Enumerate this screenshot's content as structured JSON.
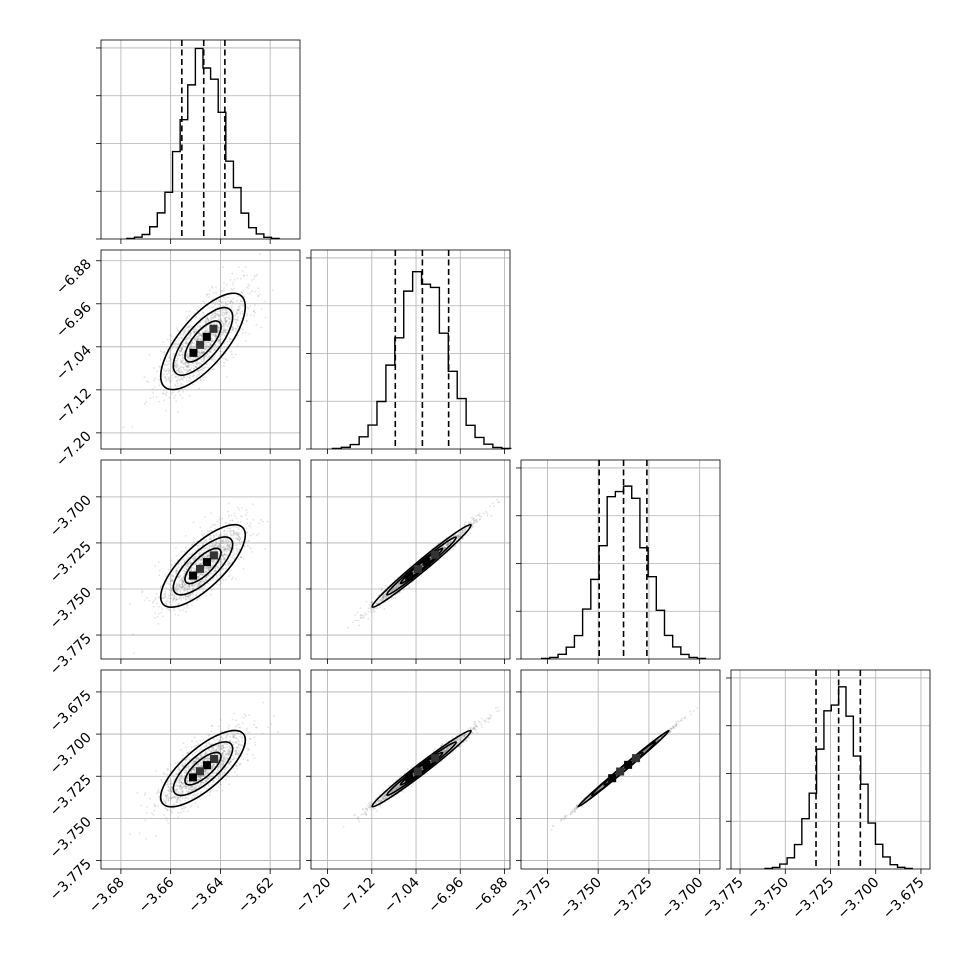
{
  "chart_data": {
    "type": "corner",
    "title": "",
    "n_params": 4,
    "grid": true,
    "params": [
      {
        "xlim": [
          -3.688,
          -3.608
        ],
        "ticks": [
          -3.68,
          -3.66,
          -3.64,
          -3.62
        ],
        "tick_labels": [
          "−3.68",
          "−3.66",
          "−3.64",
          "−3.62"
        ],
        "hist": {
          "mean": -3.647,
          "sd": 0.0085,
          "max_count": 0.92
        },
        "quantiles": [
          -3.6555,
          -3.6467,
          -3.6382
        ]
      },
      {
        "xlim": [
          -7.23,
          -6.87
        ],
        "ticks": [
          -7.2,
          -7.12,
          -7.04,
          -6.96,
          -6.88
        ],
        "tick_labels": [
          "−7.20",
          "−7.12",
          "−7.04",
          "−6.96",
          "−6.88"
        ],
        "hist": {
          "mean": -7.03,
          "sd": 0.0448,
          "max_count": 0.89
        },
        "quantiles": [
          -7.0775,
          -7.0285,
          -6.981
        ]
      },
      {
        "xlim": [
          -3.788,
          -3.69
        ],
        "ticks": [
          -3.775,
          -3.75,
          -3.725,
          -3.7
        ],
        "tick_labels": [
          "−3.775",
          "−3.750",
          "−3.725",
          "−3.700"
        ],
        "hist": {
          "mean": -3.7375,
          "sd": 0.0112,
          "max_count": 0.89
        },
        "quantiles": [
          -3.7495,
          -3.7375,
          -3.726
        ]
      },
      {
        "xlim": [
          -3.78,
          -3.67
        ],
        "ticks": [
          -3.775,
          -3.75,
          -3.725,
          -3.7,
          -3.675
        ],
        "tick_labels": [
          "−3.775",
          "−3.750",
          "−3.725",
          "−3.700",
          "−3.675"
        ],
        "hist": {
          "mean": -3.7205,
          "sd": 0.0113,
          "max_count": 0.89
        },
        "quantiles": [
          -3.733,
          -3.7205,
          -3.7085
        ]
      }
    ],
    "y_axes": [
      {
        "row": 1,
        "ylim": [
          -7.23,
          -6.86
        ],
        "ticks": [
          -7.2,
          -7.12,
          -7.04,
          -6.96,
          -6.88
        ],
        "tick_labels": [
          "−7.20",
          "−7.12",
          "−7.04",
          "−6.96",
          "−6.88"
        ]
      },
      {
        "row": 2,
        "ylim": [
          -3.788,
          -3.68
        ],
        "ticks": [
          -3.775,
          -3.75,
          -3.725,
          -3.7
        ],
        "tick_labels": [
          "−3.775",
          "−3.750",
          "−3.725",
          "−3.700"
        ]
      },
      {
        "row": 3,
        "ylim": [
          -3.78,
          -3.662
        ],
        "ticks": [
          -3.775,
          -3.75,
          -3.725,
          -3.7,
          -3.675
        ],
        "tick_labels": [
          "−3.775",
          "−3.750",
          "−3.725",
          "−3.700",
          "−3.675"
        ]
      }
    ],
    "pairs": [
      {
        "row": 1,
        "col": 0,
        "corr": 0.72
      },
      {
        "row": 2,
        "col": 0,
        "corr": 0.75
      },
      {
        "row": 2,
        "col": 1,
        "corr": 0.985
      },
      {
        "row": 3,
        "col": 0,
        "corr": 0.75
      },
      {
        "row": 3,
        "col": 1,
        "corr": 0.985
      },
      {
        "row": 3,
        "col": 2,
        "corr": 0.998
      }
    ],
    "colors": {
      "ink": "#000000",
      "grid": "#b0b0b0",
      "scatter": "#7f7f7f"
    }
  }
}
